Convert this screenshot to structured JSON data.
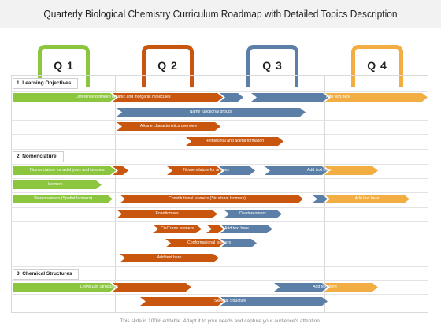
{
  "title": "Quarterly Biological Chemistry Curriculum Roadmap with Detailed Topics Description",
  "quarters": [
    "Q 1",
    "Q 2",
    "Q 3",
    "Q 4"
  ],
  "colors": {
    "q1": "#8cc63f",
    "q2": "#c8560e",
    "q3": "#5b7fa6",
    "q4": "#f2ae43"
  },
  "sections": {
    "learning": "1. Learning Objectives",
    "nomenclature": "2. Nomenclature",
    "structures": "3. Chemical Structures"
  },
  "tasks": {
    "difference": "Difference between organic and inorganic molecules",
    "add1": "Add text here",
    "functional": "Name functional groups",
    "alkane": "Alkane characteristics overview",
    "hemiacetal": "Hemiacetal and acetal formation",
    "aldehydes": "Nomenclature for aldehydes and ketones",
    "amines": "Nomenclature for amines",
    "add2": "Add text here",
    "isomers": "Isomers",
    "stereo": "Stereoisomers (Spatial Isomers)",
    "constitutional": "Constitutional isomers (Structural Isomers)",
    "add3": "Add text here",
    "enantiomers": "Enantiomers",
    "diastereomers": "Diastereomers",
    "cistrans": "Cis/Trans Isomers",
    "add4": "Add text here",
    "conformational": "Conformational Isomers",
    "add5": "Add text here",
    "lewis": "Lewis Dot Structures",
    "add6": "Add text here",
    "skeletal": "Skeletal Structure"
  },
  "footer": "This slide is 100% editable. Adapt it to your needs and capture your audience's attention."
}
